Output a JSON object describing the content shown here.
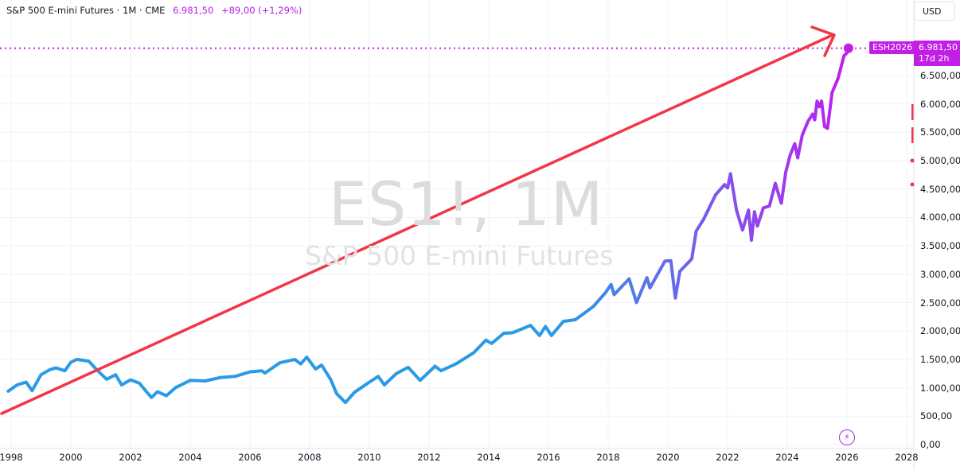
{
  "header": {
    "symbol_title": "S&P 500 E-mini Futures · 1M · CME",
    "last_price": "6.981,50",
    "change": "+89,00 (+1,29%)",
    "currency": "USD"
  },
  "watermark": {
    "ticker": "ES1!, 1M",
    "name": "S&P 500 E-mini Futures"
  },
  "price_marker": {
    "contract": "ESH2026",
    "price": "6.981,50",
    "countdown": "17d 2h"
  },
  "icons": {
    "events": "lightning-icon"
  },
  "colors": {
    "line_start": "#2b9ae6",
    "line_end": "#c01ef0",
    "trend_arrow": "#f23645",
    "last_price": "#c21fe6",
    "grid": "#f0f3fa"
  },
  "chart_data": {
    "type": "line",
    "title": "",
    "xlabel": "",
    "ylabel": "",
    "xlim": [
      1997.9,
      2028.3
    ],
    "ylim": [
      0,
      7000
    ],
    "grid": true,
    "legend": "none",
    "x_ticks": [
      "1998",
      "2000",
      "2002",
      "2004",
      "2006",
      "2008",
      "2010",
      "2012",
      "2014",
      "2016",
      "2018",
      "2020",
      "2022",
      "2024",
      "2026",
      "2028"
    ],
    "y_ticks": [
      "0,00",
      "500,00",
      "1.000,00",
      "1.500,00",
      "2.000,00",
      "2.500,00",
      "3.000,00",
      "3.500,00",
      "4.000,00",
      "4.500,00",
      "5.000,00",
      "5.500,00",
      "6.000,00",
      "6.500,00"
    ],
    "series": [
      {
        "x": [
          1997.9,
          1998.2,
          1998.5,
          1998.7,
          1999.0,
          1999.3,
          1999.5,
          1999.8,
          2000.0,
          2000.2,
          2000.6,
          2000.9,
          2001.2,
          2001.5,
          2001.7,
          2002.0,
          2002.3,
          2002.5,
          2002.7,
          2002.9,
          2003.2,
          2003.5,
          2004.0,
          2004.5,
          2005.0,
          2005.5,
          2006.0,
          2006.4,
          2006.5,
          2007.0,
          2007.5,
          2007.7,
          2007.9,
          2008.2,
          2008.4,
          2008.7,
          2008.9,
          2009.2,
          2009.5,
          2010.0,
          2010.3,
          2010.5,
          2010.9,
          2011.3,
          2011.7,
          2012.2,
          2012.4,
          2012.9,
          2013.5,
          2013.9,
          2014.1,
          2014.5,
          2014.8,
          2015.4,
          2015.7,
          2015.9,
          2016.1,
          2016.5,
          2016.9,
          2017.5,
          2017.9,
          2018.1,
          2018.2,
          2018.7,
          2018.95,
          2019.3,
          2019.4,
          2019.9,
          2020.1,
          2020.25,
          2020.4,
          2020.8,
          2020.95,
          2021.2,
          2021.6,
          2021.9,
          2022.0,
          2022.1,
          2022.3,
          2022.5,
          2022.7,
          2022.8,
          2022.9,
          2023.0,
          2023.2,
          2023.4,
          2023.6,
          2023.8,
          2023.95,
          2024.1,
          2024.25,
          2024.35,
          2024.5,
          2024.7,
          2024.85,
          2024.92,
          2025.0,
          2025.08,
          2025.15,
          2025.25,
          2025.35,
          2025.5,
          2025.7,
          2025.9,
          2026.0,
          2026.05
        ],
        "y": [
          940,
          1050,
          1100,
          950,
          1230,
          1320,
          1350,
          1300,
          1450,
          1500,
          1470,
          1300,
          1150,
          1230,
          1050,
          1140,
          1080,
          950,
          830,
          930,
          860,
          1000,
          1130,
          1120,
          1180,
          1200,
          1280,
          1300,
          1260,
          1440,
          1500,
          1420,
          1540,
          1330,
          1400,
          1150,
          900,
          740,
          920,
          1100,
          1200,
          1050,
          1250,
          1360,
          1130,
          1380,
          1300,
          1420,
          1620,
          1840,
          1780,
          1960,
          1970,
          2100,
          1920,
          2080,
          1920,
          2170,
          2200,
          2430,
          2670,
          2820,
          2640,
          2920,
          2500,
          2940,
          2760,
          3230,
          3240,
          2580,
          3050,
          3270,
          3760,
          3970,
          4400,
          4580,
          4520,
          4770,
          4130,
          3780,
          4130,
          3600,
          4100,
          3850,
          4170,
          4200,
          4600,
          4250,
          4800,
          5100,
          5300,
          5050,
          5450,
          5700,
          5820,
          5720,
          6050,
          5950,
          6050,
          5600,
          5570,
          6200,
          6450,
          6850,
          6900,
          6981.5
        ]
      }
    ]
  }
}
